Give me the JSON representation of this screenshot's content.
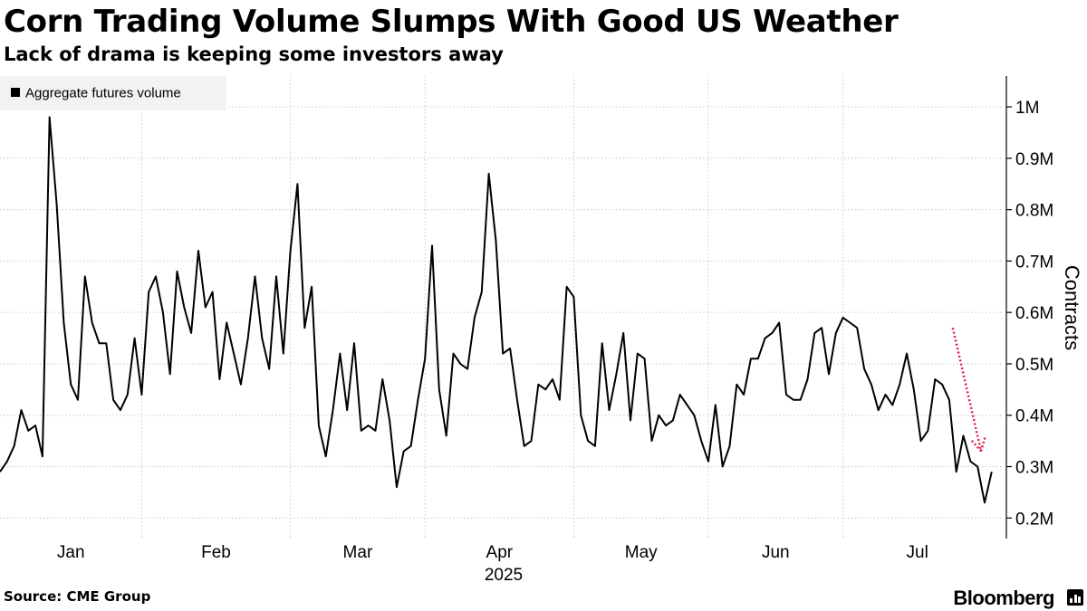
{
  "header": {
    "title": "Corn Trading Volume Slumps With Good US Weather",
    "subtitle": "Lack of drama is keeping some investors away"
  },
  "footer": {
    "source": "Source: CME Group",
    "brand": "Bloomberg",
    "brand_icon": "bloomberg-terminal-icon"
  },
  "colors": {
    "line": "#000000",
    "grid": "#c8c8c8",
    "annotation_arrow": "#e0204a",
    "legend_bg": "#f2f2f2"
  },
  "chart_data": {
    "type": "line",
    "title": "Corn Trading Volume Slumps With Good US Weather",
    "subtitle": "Lack of drama is keeping some investors away",
    "xlabel": "2025",
    "ylabel": "Contracts",
    "ylim": [
      0.16,
      1.06
    ],
    "y_ticks": [
      0.2,
      0.3,
      0.4,
      0.5,
      0.6,
      0.7,
      0.8,
      0.9,
      1.0
    ],
    "y_tick_labels": [
      "0.2M",
      "0.3M",
      "0.4M",
      "0.5M",
      "0.6M",
      "0.7M",
      "0.8M",
      "0.9M",
      "1M"
    ],
    "x_range": [
      0,
      139
    ],
    "x_gridlines": [
      20,
      41,
      60,
      81,
      100,
      119
    ],
    "x_tick_labels": [
      {
        "label": "Jan",
        "x": 10
      },
      {
        "label": "Feb",
        "x": 30.5
      },
      {
        "label": "Mar",
        "x": 50.5
      },
      {
        "label": "Apr",
        "x": 70.5
      },
      {
        "label": "May",
        "x": 90.5
      },
      {
        "label": "Jun",
        "x": 109.5
      },
      {
        "label": "Jul",
        "x": 129.5
      }
    ],
    "year_label": "2025",
    "grid": true,
    "legend": {
      "position": "top-left",
      "entries": [
        "Aggregate futures volume"
      ]
    },
    "annotation": {
      "type": "arrow",
      "style": "dotted",
      "from": [
        134.5,
        0.57
      ],
      "to": [
        138.5,
        0.33
      ]
    },
    "series": [
      {
        "name": "Aggregate futures volume",
        "values": [
          [
            0,
            0.29
          ],
          [
            1,
            0.31
          ],
          [
            2,
            0.34
          ],
          [
            3,
            0.41
          ],
          [
            4,
            0.37
          ],
          [
            5,
            0.38
          ],
          [
            6,
            0.32
          ],
          [
            7,
            0.98
          ],
          [
            8,
            0.81
          ],
          [
            9,
            0.58
          ],
          [
            10,
            0.46
          ],
          [
            11,
            0.43
          ],
          [
            12,
            0.67
          ],
          [
            13,
            0.58
          ],
          [
            14,
            0.54
          ],
          [
            15,
            0.54
          ],
          [
            16,
            0.43
          ],
          [
            17,
            0.41
          ],
          [
            18,
            0.44
          ],
          [
            19,
            0.55
          ],
          [
            20,
            0.44
          ],
          [
            21,
            0.64
          ],
          [
            22,
            0.67
          ],
          [
            23,
            0.6
          ],
          [
            24,
            0.48
          ],
          [
            25,
            0.68
          ],
          [
            26,
            0.61
          ],
          [
            27,
            0.56
          ],
          [
            28,
            0.72
          ],
          [
            29,
            0.61
          ],
          [
            30,
            0.64
          ],
          [
            31,
            0.47
          ],
          [
            32,
            0.58
          ],
          [
            33,
            0.52
          ],
          [
            34,
            0.46
          ],
          [
            35,
            0.55
          ],
          [
            36,
            0.67
          ],
          [
            37,
            0.55
          ],
          [
            38,
            0.49
          ],
          [
            39,
            0.67
          ],
          [
            40,
            0.52
          ],
          [
            41,
            0.72
          ],
          [
            42,
            0.85
          ],
          [
            43,
            0.57
          ],
          [
            44,
            0.65
          ],
          [
            45,
            0.38
          ],
          [
            46,
            0.32
          ],
          [
            47,
            0.41
          ],
          [
            48,
            0.52
          ],
          [
            49,
            0.41
          ],
          [
            50,
            0.54
          ],
          [
            51,
            0.37
          ],
          [
            52,
            0.38
          ],
          [
            53,
            0.37
          ],
          [
            54,
            0.47
          ],
          [
            55,
            0.39
          ],
          [
            56,
            0.26
          ],
          [
            57,
            0.33
          ],
          [
            58,
            0.34
          ],
          [
            59,
            0.43
          ],
          [
            60,
            0.51
          ],
          [
            61,
            0.73
          ],
          [
            62,
            0.45
          ],
          [
            63,
            0.36
          ],
          [
            64,
            0.52
          ],
          [
            65,
            0.5
          ],
          [
            66,
            0.49
          ],
          [
            67,
            0.59
          ],
          [
            68,
            0.64
          ],
          [
            69,
            0.87
          ],
          [
            70,
            0.74
          ],
          [
            71,
            0.52
          ],
          [
            72,
            0.53
          ],
          [
            73,
            0.43
          ],
          [
            74,
            0.34
          ],
          [
            75,
            0.35
          ],
          [
            76,
            0.46
          ],
          [
            77,
            0.45
          ],
          [
            78,
            0.47
          ],
          [
            79,
            0.43
          ],
          [
            80,
            0.65
          ],
          [
            81,
            0.63
          ],
          [
            82,
            0.4
          ],
          [
            83,
            0.35
          ],
          [
            84,
            0.34
          ],
          [
            85,
            0.54
          ],
          [
            86,
            0.41
          ],
          [
            87,
            0.48
          ],
          [
            88,
            0.56
          ],
          [
            89,
            0.39
          ],
          [
            90,
            0.52
          ],
          [
            91,
            0.51
          ],
          [
            92,
            0.35
          ],
          [
            93,
            0.4
          ],
          [
            94,
            0.38
          ],
          [
            95,
            0.39
          ],
          [
            96,
            0.44
          ],
          [
            97,
            0.42
          ],
          [
            98,
            0.4
          ],
          [
            99,
            0.35
          ],
          [
            100,
            0.31
          ],
          [
            101,
            0.42
          ],
          [
            102,
            0.3
          ],
          [
            103,
            0.34
          ],
          [
            104,
            0.46
          ],
          [
            105,
            0.44
          ],
          [
            106,
            0.51
          ],
          [
            107,
            0.51
          ],
          [
            108,
            0.55
          ],
          [
            109,
            0.56
          ],
          [
            110,
            0.58
          ],
          [
            111,
            0.44
          ],
          [
            112,
            0.43
          ],
          [
            113,
            0.43
          ],
          [
            114,
            0.47
          ],
          [
            115,
            0.56
          ],
          [
            116,
            0.57
          ],
          [
            117,
            0.48
          ],
          [
            118,
            0.56
          ],
          [
            119,
            0.59
          ],
          [
            120,
            0.58
          ],
          [
            121,
            0.57
          ],
          [
            122,
            0.49
          ],
          [
            123,
            0.46
          ],
          [
            124,
            0.41
          ],
          [
            125,
            0.44
          ],
          [
            126,
            0.42
          ],
          [
            127,
            0.46
          ],
          [
            128,
            0.52
          ],
          [
            129,
            0.45
          ],
          [
            130,
            0.35
          ],
          [
            131,
            0.37
          ],
          [
            132,
            0.47
          ],
          [
            133,
            0.46
          ],
          [
            134,
            0.43
          ],
          [
            135,
            0.29
          ],
          [
            136,
            0.36
          ],
          [
            137,
            0.31
          ],
          [
            138,
            0.3
          ],
          [
            139,
            0.23
          ],
          [
            140,
            0.29
          ]
        ]
      }
    ]
  }
}
